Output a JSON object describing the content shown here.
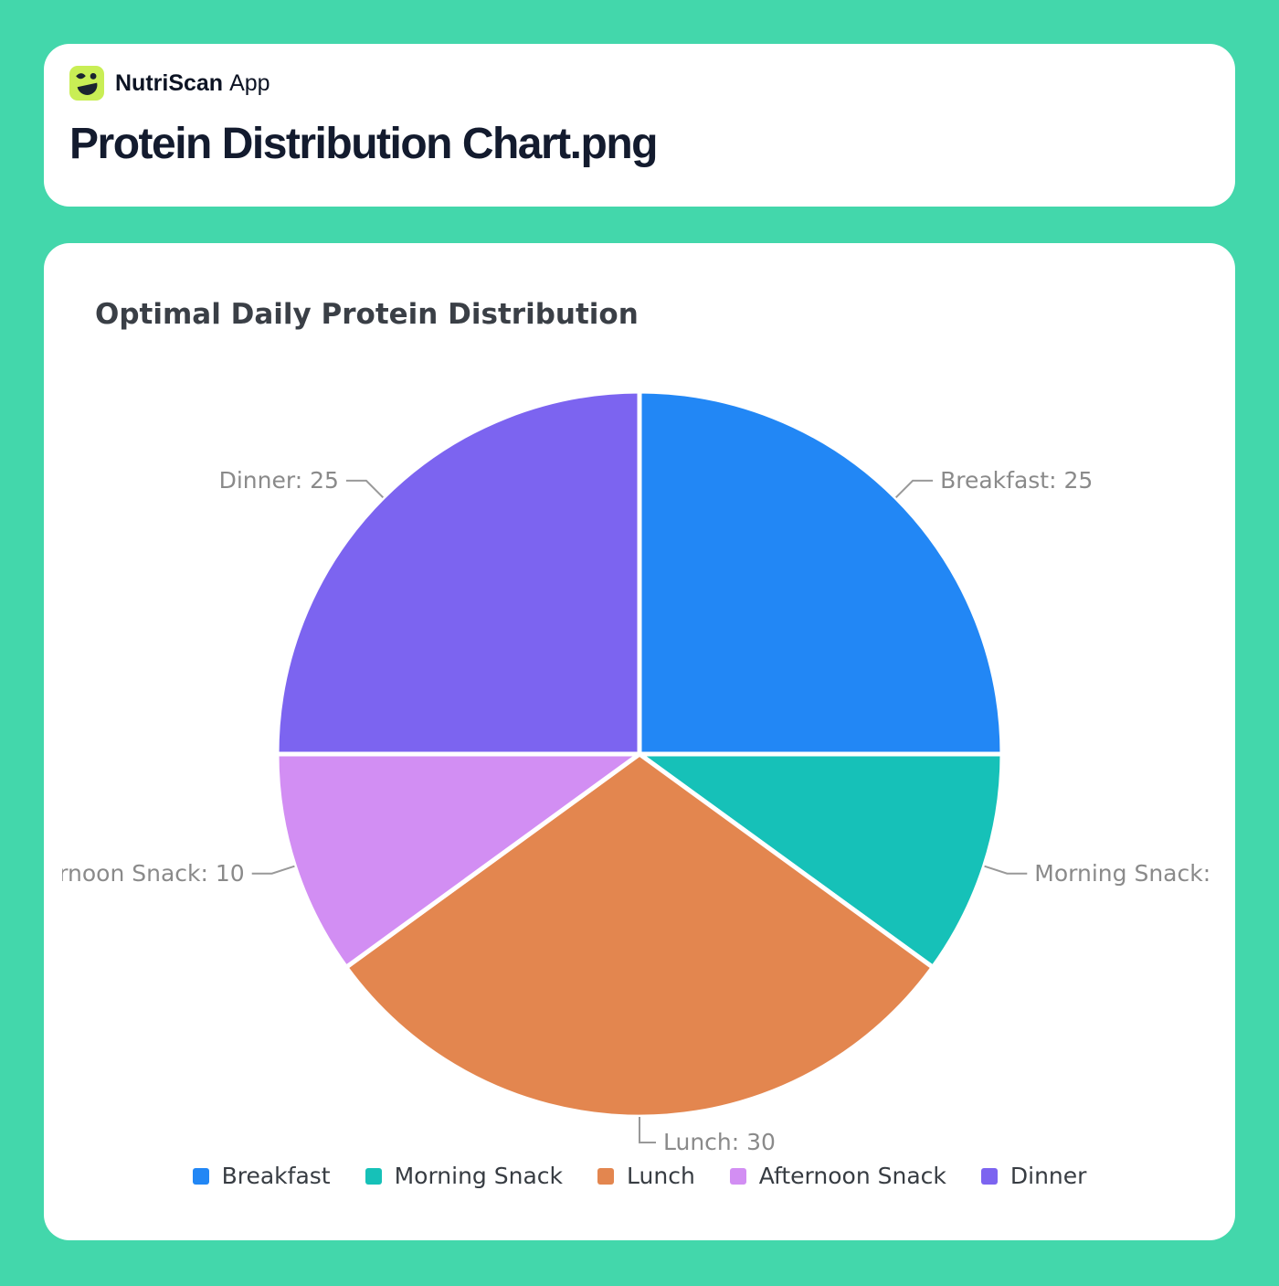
{
  "app": {
    "brand": "NutriScan",
    "brand_suffix": "App",
    "file_title": "Protein Distribution Chart.png"
  },
  "chart_data": {
    "type": "pie",
    "title": "Optimal Daily Protein Distribution",
    "series": [
      {
        "name": "Breakfast",
        "value": 25,
        "color": "#2287f5"
      },
      {
        "name": "Morning Snack",
        "value": 10,
        "color": "#16c1b8"
      },
      {
        "name": "Lunch",
        "value": 30,
        "color": "#e3864f"
      },
      {
        "name": "Afternoon Snack",
        "value": 10,
        "color": "#d28ef3"
      },
      {
        "name": "Dinner",
        "value": 25,
        "color": "#7c64f0"
      }
    ],
    "total": 100,
    "label_format": "{name}: {value}",
    "start_angle": "top",
    "direction": "clockwise",
    "legend_position": "bottom",
    "legend": [
      "Breakfast",
      "Morning Snack",
      "Lunch",
      "Afternoon Snack",
      "Dinner"
    ]
  },
  "colors": {
    "page_background": "#43d7ab",
    "card_background": "#ffffff",
    "logo_background": "#c9ee55",
    "logo_glyph": "#1b2430",
    "header_title": "#131b2e",
    "chart_title": "#3a3f46",
    "slice_label": "#8a8a8a",
    "label_line": "#999999",
    "legend_text": "#373c42",
    "slice_border": "#ffffff"
  }
}
